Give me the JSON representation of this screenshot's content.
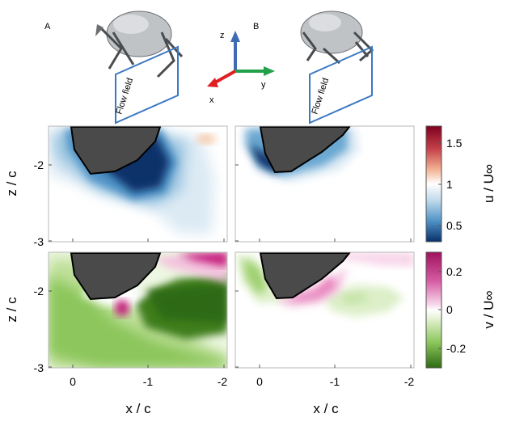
{
  "panel_labels": {
    "a": "A",
    "b": "B"
  },
  "flow_field_label": "Flow field",
  "axes_icon": {
    "z": "z",
    "y": "y",
    "x": "x"
  },
  "colors": {
    "dark_blue": "#08306b",
    "mid_blue": "#4f93c6",
    "light_blue": "#dceaf4",
    "neutral": "#ffffff",
    "light_red": "#f6c9a8",
    "dark_red": "#80001f",
    "dark_green": "#2e6b12",
    "mid_green": "#8cc65b",
    "light_green": "#e2f1cf",
    "light_pink": "#f7d6ea",
    "dark_pink": "#c51b7d",
    "body_fill": "#4a4a4a",
    "frame_blue": "#3a78c2",
    "axis_z": "#3f6bb5",
    "axis_y": "#22a14a",
    "axis_x": "#e02020"
  },
  "chart_data": [
    {
      "type": "heatmap",
      "name": "u-left",
      "variable": "u / U∞",
      "flight": "A",
      "xlim": [
        0.35,
        -2.0
      ],
      "ylim": [
        -3,
        -1.45
      ],
      "xlabel": "",
      "ylabel": "z / c",
      "yticks": [
        "-2",
        "-3"
      ],
      "xticks": [],
      "colorbar": {
        "label": "u / U∞",
        "ticks": [
          "1.5",
          "1",
          "0.5"
        ],
        "range": [
          0.3,
          1.7
        ]
      }
    },
    {
      "type": "heatmap",
      "name": "u-right",
      "variable": "u / U∞",
      "flight": "B",
      "xlim": [
        0.35,
        -2.0
      ],
      "ylim": [
        -3,
        -1.45
      ],
      "xlabel": "",
      "ylabel": "",
      "yticks": [],
      "xticks": []
    },
    {
      "type": "heatmap",
      "name": "v-left",
      "variable": "v / U∞",
      "flight": "A",
      "xlim": [
        0.35,
        -2.0
      ],
      "ylim": [
        -3,
        -1.45
      ],
      "xlabel": "x / c",
      "ylabel": "z / c",
      "yticks": [
        "-2",
        "-3"
      ],
      "xticks": [
        "0",
        "-1",
        "-2"
      ],
      "colorbar": {
        "label": "v / U∞",
        "ticks": [
          "0.2",
          "0",
          "-0.2"
        ],
        "range": [
          -0.3,
          0.3
        ]
      }
    },
    {
      "type": "heatmap",
      "name": "v-right",
      "variable": "v / U∞",
      "flight": "B",
      "xlim": [
        0.35,
        -2.0
      ],
      "ylim": [
        -3,
        -1.45
      ],
      "xlabel": "x / c",
      "ylabel": "",
      "yticks": [],
      "xticks": [
        "0",
        "-1",
        "-2"
      ]
    }
  ]
}
